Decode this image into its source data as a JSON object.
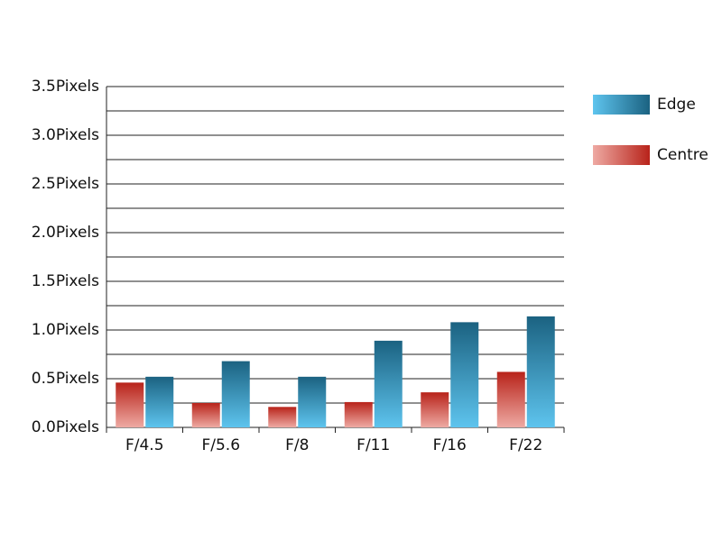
{
  "chart_data": {
    "type": "bar",
    "categories": [
      "F/4.5",
      "F/5.6",
      "F/8",
      "F/11",
      "F/16",
      "F/22"
    ],
    "series": [
      {
        "name": "Centre",
        "colors": [
          "#b8231a",
          "#eeaaa3"
        ],
        "values": [
          0.46,
          0.25,
          0.21,
          0.26,
          0.36,
          0.57
        ]
      },
      {
        "name": "Edge",
        "colors": [
          "#1b6281",
          "#5ec4ee"
        ],
        "values": [
          0.52,
          0.68,
          0.52,
          0.89,
          1.08,
          1.14
        ]
      }
    ],
    "ylim": [
      0,
      3.5
    ],
    "yticks": [
      {
        "value": 0,
        "label": "0.0Pixels"
      },
      {
        "value": 0.5,
        "label": "0.5Pixels"
      },
      {
        "value": 1,
        "label": "1.0Pixels"
      },
      {
        "value": 1.5,
        "label": "1.5Pixels"
      },
      {
        "value": 2,
        "label": "2.0Pixels"
      },
      {
        "value": 2.5,
        "label": "2.5Pixels"
      },
      {
        "value": 3,
        "label": "3.0Pixels"
      },
      {
        "value": 3.5,
        "label": "3.5Pixels"
      }
    ],
    "minor_yticks": [
      0.25,
      0.75,
      1.25,
      1.75,
      2.25,
      2.75,
      3.25
    ],
    "grid": true,
    "legend": "right"
  }
}
